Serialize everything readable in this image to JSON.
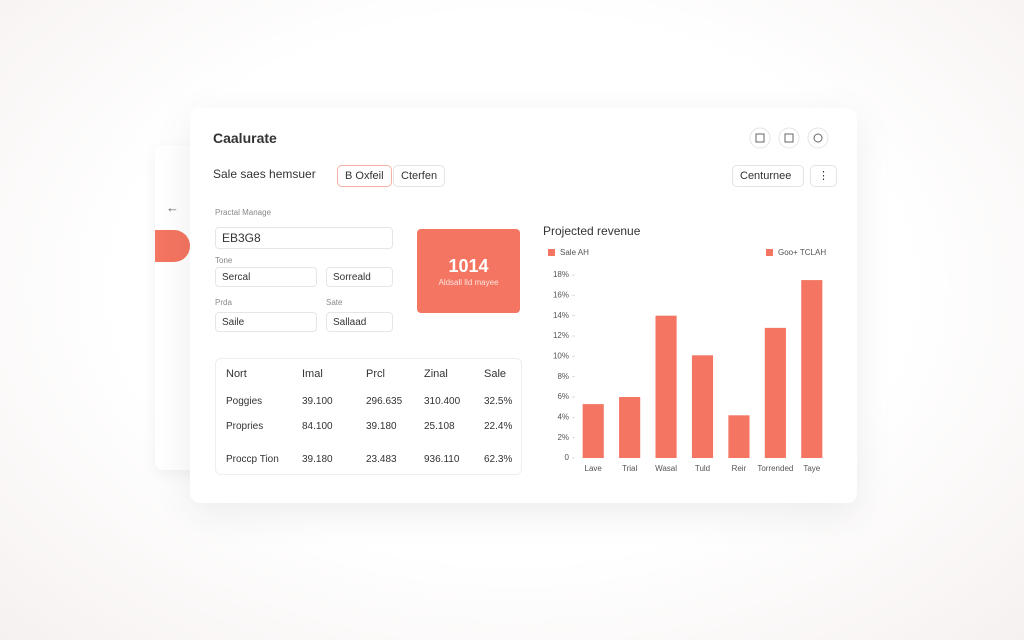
{
  "header": {
    "title": "Caalurate",
    "subtitle": "Sale saes hemsuer",
    "buttons": [
      "B Oxfeil",
      "Cterfen"
    ],
    "dropdown": "Centurnee"
  },
  "form": {
    "label": "Practal Manage",
    "input": "EB3G8",
    "fields": [
      {
        "label": "Tone",
        "value": "Sercal"
      },
      {
        "value": "Sorreald"
      },
      {
        "label": "Prda",
        "value": "Saile"
      },
      {
        "label": "Sate",
        "value": "Sallaad"
      }
    ]
  },
  "kpi": {
    "value": "1014",
    "label": "Aldsall lld mayee"
  },
  "table": {
    "columns": [
      "Nort",
      "Imal",
      "Prcl",
      "Zinal",
      "Sale"
    ],
    "rows": [
      [
        "Poggies",
        "39.100",
        "296.635",
        "310.400",
        "32.5%"
      ],
      [
        "Propries",
        "84.100",
        "39.180",
        "25.108",
        "22.4%"
      ],
      [
        "Proccp Tion",
        "39.180",
        "23.483",
        "936.110",
        "62.3%"
      ]
    ]
  },
  "chart_data": {
    "type": "bar",
    "title": "Projected revenue",
    "legend": [
      "Sale AH",
      "Goo+ TCLAH"
    ],
    "color": "#f47561",
    "categories": [
      "Lave",
      "Trial",
      "Wasal",
      "Tuld",
      "Reir",
      "Torrended",
      "Taye"
    ],
    "values": [
      5.3,
      6,
      14,
      10.1,
      4.2,
      12.8,
      17.5
    ],
    "ylim": [
      0,
      18
    ],
    "yticks": [
      0,
      {
        "value": 2,
        "label": "2%"
      },
      {
        "value": 4,
        "label": "4%"
      },
      {
        "value": 6,
        "label": "6%"
      },
      {
        "value": 8,
        "label": "8%"
      },
      {
        "value": 10,
        "label": "10%"
      },
      {
        "value": 12,
        "label": "12%"
      },
      {
        "value": 14,
        "label": "14%"
      },
      {
        "value": 16,
        "label": "16%"
      },
      {
        "value": 18,
        "label": "18%"
      }
    ],
    "grid": false
  }
}
